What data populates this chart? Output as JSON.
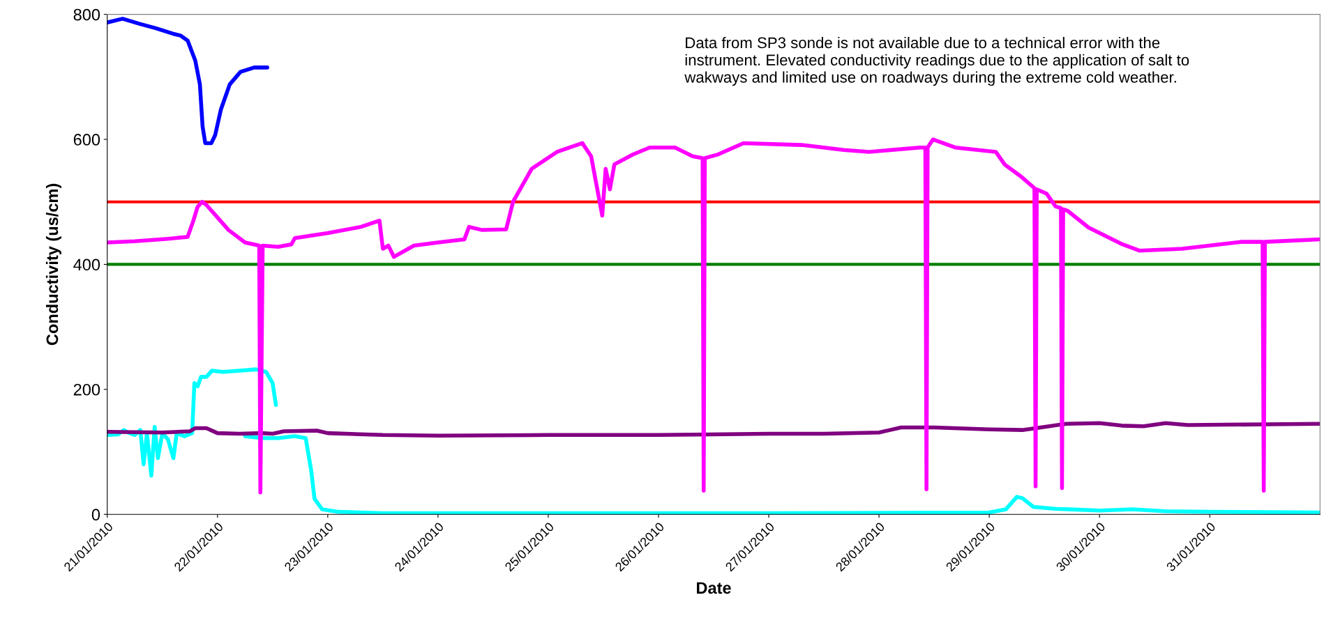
{
  "chart_data": {
    "type": "line",
    "xlabel": "Date",
    "ylabel": "Conductivity (us/cm)",
    "xlim": [
      "2010-01-21",
      "2010-02-01"
    ],
    "xticks": [
      {
        "value": "2010-01-21",
        "label": "21/01/2010"
      },
      {
        "value": "2010-01-22",
        "label": "22/01/2010"
      },
      {
        "value": "2010-01-23",
        "label": "23/01/2010"
      },
      {
        "value": "2010-01-24",
        "label": "24/01/2010"
      },
      {
        "value": "2010-01-25",
        "label": "25/01/2010"
      },
      {
        "value": "2010-01-26",
        "label": "26/01/2010"
      },
      {
        "value": "2010-01-27",
        "label": "27/01/2010"
      },
      {
        "value": "2010-01-28",
        "label": "28/01/2010"
      },
      {
        "value": "2010-01-29",
        "label": "29/01/2010"
      },
      {
        "value": "2010-01-30",
        "label": "30/01/2010"
      },
      {
        "value": "2010-01-31",
        "label": "31/01/2010"
      }
    ],
    "ylim": [
      0,
      800
    ],
    "yticks": [
      0,
      200,
      400,
      600,
      800
    ],
    "grid": false,
    "legend": false,
    "marker": "none",
    "line_style": "solid",
    "ref_lines": [
      {
        "axis": "y",
        "value": 500,
        "label": null,
        "color": "#ff0000"
      },
      {
        "axis": "y",
        "value": 400,
        "label": null,
        "color": "#008000"
      }
    ],
    "annotations": [
      "Data from SP3 sonde is not available due to a technical error with the\ninstrument. Elevated conductivity readings due to the application of salt to\nwakways and limited use on roadways during the extreme cold weather."
    ],
    "series": [
      {
        "color": "#0000ff",
        "x": [
          "2010-01-21T00:00",
          "2010-01-21T03:20",
          "2010-01-21T07:00",
          "2010-01-21T10:30",
          "2010-01-21T14:20",
          "2010-01-21T16:00",
          "2010-01-21T17:30",
          "2010-01-21T19:10",
          "2010-01-21T20:10",
          "2010-01-21T20:45",
          "2010-01-21T21:20",
          "2010-01-21T22:40",
          "2010-01-21T23:30",
          "2010-01-22T00:45",
          "2010-01-22T02:40",
          "2010-01-22T05:00",
          "2010-01-22T08:00",
          "2010-01-22T10:50"
        ],
        "values": [
          787,
          793,
          785,
          778,
          769,
          766,
          758,
          726,
          688,
          621,
          594,
          594,
          607,
          648,
          688,
          708,
          715,
          715
        ]
      },
      {
        "color": "#00ffff",
        "x": [
          "2010-01-21T00:00",
          "2010-01-21T02:24",
          "2010-01-21T03:36",
          "2010-01-21T04:48",
          "2010-01-21T06:00",
          "2010-01-21T07:12",
          "2010-01-21T07:55",
          "2010-01-21T08:38",
          "2010-01-21T09:36",
          "2010-01-21T10:19",
          "2010-01-21T11:02",
          "2010-01-21T12:00",
          "2010-01-21T13:12",
          "2010-01-21T14:24",
          "2010-01-21T15:07",
          "2010-01-21T16:48",
          "2010-01-21T18:29",
          "2010-01-21T18:58",
          "2010-01-21T19:41",
          "2010-01-21T20:24",
          "2010-01-21T21:36",
          "2010-01-21T22:48",
          "2010-01-22T01:12",
          "2010-01-22T04:48",
          "2010-01-22T08:24",
          "2010-01-22T10:34",
          "2010-01-22T12:00",
          "2010-01-22T12:43"
        ],
        "values": [
          127,
          128,
          135,
          130,
          127,
          135,
          80,
          130,
          62,
          140,
          90,
          130,
          120,
          90,
          130,
          125,
          130,
          210,
          205,
          220,
          220,
          230,
          228,
          230,
          232,
          228,
          210,
          175
        ]
      },
      {
        "color": "#00ffff",
        "x": [
          "2010-01-22T06:00",
          "2010-01-22T09:36",
          "2010-01-22T13:12",
          "2010-01-22T16:48",
          "2010-01-22T19:12",
          "2010-01-22T20:24",
          "2010-01-22T21:07",
          "2010-01-22T22:48",
          "2010-01-23T02:24",
          "2010-01-23T12:00",
          "2010-01-25T00:00",
          "2010-01-27T00:00",
          "2010-01-29T00:00",
          "2010-01-29T03:36",
          "2010-01-29T06:00",
          "2010-01-29T07:12",
          "2010-01-29T09:36",
          "2010-01-29T14:24",
          "2010-01-30T00:00",
          "2010-01-30T07:12",
          "2010-01-30T14:24",
          "2010-01-31T00:00",
          "2010-02-01T00:00"
        ],
        "values": [
          125,
          122,
          122,
          125,
          122,
          70,
          25,
          8,
          4,
          2,
          2,
          2,
          3,
          8,
          28,
          26,
          12,
          9,
          6,
          8,
          5,
          4,
          3
        ]
      },
      {
        "color": "#800080",
        "x": [
          "2010-01-21T00:00",
          "2010-01-21T12:00",
          "2010-01-21T18:00",
          "2010-01-21T19:12",
          "2010-01-21T21:36",
          "2010-01-22T00:00",
          "2010-01-22T04:48",
          "2010-01-22T09:36",
          "2010-01-22T12:00",
          "2010-01-22T14:24",
          "2010-01-22T21:36",
          "2010-01-23T00:00",
          "2010-01-23T12:00",
          "2010-01-24T00:00",
          "2010-01-25T00:00",
          "2010-01-26T00:00",
          "2010-01-27T00:00",
          "2010-01-27T12:00",
          "2010-01-28T00:00",
          "2010-01-28T04:48",
          "2010-01-28T12:00",
          "2010-01-29T00:00",
          "2010-01-29T07:12",
          "2010-01-29T12:00",
          "2010-01-29T16:48",
          "2010-01-30T00:00",
          "2010-01-30T04:48",
          "2010-01-30T09:36",
          "2010-01-30T14:24",
          "2010-01-30T19:12",
          "2010-01-31T12:00",
          "2010-02-01T00:00"
        ],
        "values": [
          132,
          131,
          133,
          138,
          138,
          130,
          129,
          130,
          129,
          133,
          134,
          130,
          127,
          126,
          127,
          127,
          129,
          129,
          131,
          139,
          139,
          136,
          135,
          140,
          145,
          146,
          142,
          141,
          146,
          143,
          144,
          145
        ]
      },
      {
        "color": "#ff00ff",
        "x": [
          "2010-01-21T00:00",
          "2010-01-21T06:00",
          "2010-01-21T13:12",
          "2010-01-21T17:30",
          "2010-01-21T18:45",
          "2010-01-21T19:40",
          "2010-01-21T20:40",
          "2010-01-21T21:36",
          "2010-01-22T00:00",
          "2010-01-22T02:24",
          "2010-01-22T06:00",
          "2010-01-22T09:05",
          "2010-01-22T09:20",
          "2010-01-22T09:50",
          "2010-01-22T13:12",
          "2010-01-22T16:05",
          "2010-01-22T16:50",
          "2010-01-23T00:00",
          "2010-01-23T07:12",
          "2010-01-23T11:15",
          "2010-01-23T12:00",
          "2010-01-23T13:12",
          "2010-01-23T14:24",
          "2010-01-23T18:45",
          "2010-01-24T00:00",
          "2010-01-24T05:45",
          "2010-01-24T06:45",
          "2010-01-24T09:36",
          "2010-01-24T14:50",
          "2010-01-24T16:20",
          "2010-01-24T20:24",
          "2010-01-25T01:55",
          "2010-01-25T07:25",
          "2010-01-25T09:20",
          "2010-01-25T11:45",
          "2010-01-25T12:30",
          "2010-01-25T13:25",
          "2010-01-25T14:24",
          "2010-01-25T18:30",
          "2010-01-25T22:05",
          "2010-01-26T03:36",
          "2010-01-26T07:25",
          "2010-01-26T09:36",
          "2010-01-26T09:50",
          "2010-01-26T10:05",
          "2010-01-26T13:00",
          "2010-01-26T18:30",
          "2010-01-27T07:12",
          "2010-01-27T16:20",
          "2010-01-27T21:50",
          "2010-01-28T08:55",
          "2010-01-28T10:05",
          "2010-01-28T10:20",
          "2010-01-28T10:35",
          "2010-01-28T11:45",
          "2010-01-28T16:35",
          "2010-01-29T01:25",
          "2010-01-29T03:20",
          "2010-01-29T07:00",
          "2010-01-29T09:50",
          "2010-01-29T10:05",
          "2010-01-29T10:20",
          "2010-01-29T12:30",
          "2010-01-29T14:24",
          "2010-01-29T15:36",
          "2010-01-29T15:50",
          "2010-01-29T16:05",
          "2010-01-29T17:00",
          "2010-01-29T21:36",
          "2010-01-30T05:00",
          "2010-01-30T08:40",
          "2010-01-30T18:00",
          "2010-01-31T06:45",
          "2010-01-31T11:30",
          "2010-01-31T11:45",
          "2010-01-31T12:00",
          "2010-02-01T00:00"
        ],
        "values": [
          435,
          437,
          441,
          444,
          470,
          492,
          500,
          495,
          475,
          455,
          435,
          430,
          35,
          430,
          428,
          432,
          442,
          450,
          460,
          470,
          425,
          430,
          412,
          430,
          435,
          440,
          460,
          455,
          456,
          500,
          553,
          580,
          594,
          573,
          478,
          553,
          520,
          560,
          576,
          587,
          587,
          573,
          570,
          38,
          570,
          576,
          594,
          591,
          583,
          580,
          587,
          587,
          40,
          587,
          600,
          587,
          580,
          560,
          540,
          522,
          45,
          520,
          513,
          493,
          490,
          42,
          488,
          486,
          459,
          432,
          422,
          425,
          436,
          436,
          38,
          436,
          440
        ]
      }
    ]
  }
}
